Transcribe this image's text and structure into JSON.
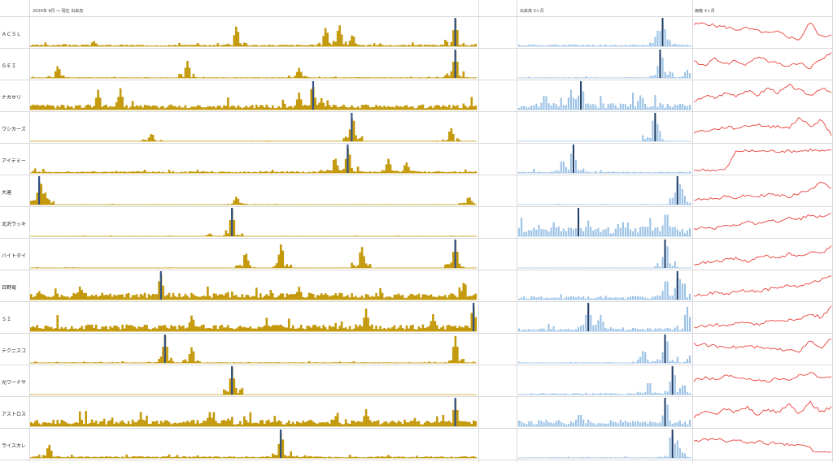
{
  "header": {
    "period_label": "2024年 9月 〜 現在 出来高",
    "volume_label": "出来高 3ヶ月",
    "price_label": "価格 3ヶ月"
  },
  "colors": {
    "volume_long": "#c49a0c",
    "volume_short": "#9dc3e6",
    "highlight": "#2f4f85",
    "highlight_short": "#1f3d66",
    "price_line": "#e8413c",
    "grid": "#d9d9d9"
  },
  "chart_data": {
    "type": "bar",
    "description_of_panels": [
      "volume since 2024-09 (gold bars)",
      "volume last 3 months (blue bars)",
      "price last 3 months (red line)"
    ],
    "rows": [
      {
        "name": "ＡＣＳＬ",
        "long": {
          "peak": 0.95,
          "spikes": [
            [
              0.14,
              0.2
            ],
            [
              0.46,
              0.75
            ],
            [
              0.66,
              0.7
            ],
            [
              0.69,
              0.8
            ],
            [
              0.72,
              0.45
            ],
            [
              0.95,
              0.95
            ]
          ],
          "base": 0.05
        },
        "short": {
          "peak": 0.9,
          "spikes": [
            [
              0.8,
              0.55
            ],
            [
              0.83,
              0.95
            ],
            [
              0.85,
              0.3
            ]
          ],
          "base": 0.06
        },
        "price": [
          0.8,
          0.85,
          0.75,
          0.7,
          0.6,
          0.65,
          0.55,
          0.45,
          0.5,
          0.3,
          0.2,
          0.9,
          0.3,
          0.4
        ]
      },
      {
        "name": "ＧＥＩ",
        "long": {
          "peak": 0.95,
          "spikes": [
            [
              0.06,
              0.45
            ],
            [
              0.35,
              0.6
            ],
            [
              0.6,
              0.35
            ],
            [
              0.95,
              0.95
            ]
          ],
          "base": 0.02
        },
        "short": {
          "peak": 0.9,
          "spikes": [
            [
              0.82,
              0.95
            ],
            [
              0.97,
              0.3
            ]
          ],
          "base": 0.02
        },
        "price": [
          0.6,
          0.4,
          0.7,
          0.5,
          0.6,
          0.45,
          0.8,
          0.6,
          0.5,
          0.4,
          0.55,
          0.3,
          0.7,
          0.9
        ]
      },
      {
        "name": "ナガホリ",
        "long": {
          "peak": 0.95,
          "spikes": [
            [
              0.15,
              0.7
            ],
            [
              0.2,
              0.75
            ],
            [
              0.6,
              0.6
            ],
            [
              0.63,
              0.95
            ],
            [
              0.65,
              0.4
            ]
          ],
          "base": 0.15
        },
        "short": {
          "peak": 0.95,
          "spikes": [
            [
              0.15,
              0.6
            ],
            [
              0.3,
              0.7
            ],
            [
              0.36,
              0.95
            ],
            [
              0.7,
              0.5
            ]
          ],
          "base": 0.2
        },
        "price": [
          0.2,
          0.5,
          0.4,
          0.6,
          0.5,
          0.7,
          0.5,
          0.8,
          0.6,
          0.9,
          0.7,
          0.5,
          0.8,
          0.6
        ]
      },
      {
        "name": "ワシカーズ",
        "long": {
          "peak": 0.95,
          "spikes": [
            [
              0.27,
              0.3
            ],
            [
              0.72,
              0.95
            ],
            [
              0.94,
              0.5
            ]
          ],
          "base": 0.01
        },
        "short": {
          "peak": 0.9,
          "spikes": [
            [
              0.78,
              0.95
            ],
            [
              0.8,
              0.6
            ]
          ],
          "base": 0.01
        },
        "price": [
          0.3,
          0.35,
          0.4,
          0.5,
          0.45,
          0.55,
          0.6,
          0.5,
          0.55,
          0.45,
          0.9,
          0.5,
          0.8,
          0.2
        ]
      },
      {
        "name": "アイデミー",
        "long": {
          "peak": 0.95,
          "spikes": [
            [
              0.68,
              0.6
            ],
            [
              0.71,
              0.95
            ],
            [
              0.8,
              0.5
            ],
            [
              0.84,
              0.4
            ]
          ],
          "base": 0.05
        },
        "short": {
          "peak": 0.9,
          "spikes": [
            [
              0.25,
              0.5
            ],
            [
              0.31,
              0.95
            ]
          ],
          "base": 0.05
        },
        "price": [
          0.05,
          0.05,
          0.05,
          0.05,
          0.8,
          0.8,
          0.8,
          0.8,
          0.8,
          0.8,
          0.8,
          0.85,
          0.8,
          0.8
        ]
      },
      {
        "name": "大運",
        "long": {
          "peak": 0.95,
          "spikes": [
            [
              0.02,
              0.95
            ],
            [
              0.03,
              0.5
            ],
            [
              0.46,
              0.3
            ],
            [
              0.98,
              0.3
            ]
          ],
          "base": 0.01
        },
        "short": {
          "peak": 0.95,
          "spikes": [
            [
              0.92,
              0.95
            ],
            [
              0.94,
              0.6
            ]
          ],
          "base": 0.01
        },
        "price": [
          0.1,
          0.2,
          0.15,
          0.25,
          0.2,
          0.3,
          0.25,
          0.35,
          0.3,
          0.25,
          0.4,
          0.5,
          0.9,
          0.6
        ]
      },
      {
        "name": "北沢ラッキ",
        "long": {
          "peak": 0.95,
          "spikes": [
            [
              0.4,
              0.1
            ],
            [
              0.45,
              0.95
            ]
          ],
          "base": 0.01
        },
        "short": {
          "peak": 0.95,
          "spikes": [
            [
              0.2,
              0.5
            ],
            [
              0.4,
              0.55
            ],
            [
              0.6,
              0.5
            ],
            [
              0.85,
              0.95
            ]
          ],
          "base": 0.3
        },
        "price": [
          0.2,
          0.3,
          0.25,
          0.4,
          0.35,
          0.5,
          0.4,
          0.6,
          0.5,
          0.7,
          0.6,
          0.8,
          0.7,
          0.9
        ]
      },
      {
        "name": "バイトダイ",
        "long": {
          "peak": 0.95,
          "spikes": [
            [
              0.48,
              0.6
            ],
            [
              0.56,
              0.9
            ],
            [
              0.74,
              0.8
            ],
            [
              0.95,
              0.95
            ]
          ],
          "base": 0.01
        },
        "short": {
          "peak": 0.95,
          "spikes": [
            [
              0.85,
              0.95
            ]
          ],
          "base": 0.01
        },
        "price": [
          0.1,
          0.15,
          0.2,
          0.25,
          0.3,
          0.2,
          0.35,
          0.4,
          0.3,
          0.5,
          0.4,
          0.6,
          0.5,
          0.8
        ]
      },
      {
        "name": "日野電",
        "long": {
          "peak": 0.95,
          "spikes": [
            [
              0.11,
              0.5
            ],
            [
              0.29,
              0.95
            ],
            [
              0.6,
              0.45
            ],
            [
              0.97,
              0.7
            ]
          ],
          "base": 0.2
        },
        "short": {
          "peak": 0.95,
          "spikes": [
            [
              0.85,
              0.8
            ],
            [
              0.92,
              0.95
            ],
            [
              0.95,
              0.7
            ]
          ],
          "base": 0.1
        },
        "price": [
          0.1,
          0.15,
          0.2,
          0.15,
          0.25,
          0.3,
          0.25,
          0.35,
          0.4,
          0.5,
          0.45,
          0.6,
          0.7,
          0.9
        ]
      },
      {
        "name": "ＳＩ",
        "long": {
          "peak": 0.95,
          "spikes": [
            [
              0.36,
              0.6
            ],
            [
              0.75,
              0.8
            ],
            [
              0.9,
              0.6
            ],
            [
              0.99,
              0.95
            ]
          ],
          "base": 0.2
        },
        "short": {
          "peak": 0.95,
          "spikes": [
            [
              0.4,
              0.95
            ],
            [
              0.47,
              0.6
            ],
            [
              0.97,
              0.9
            ]
          ],
          "base": 0.1
        },
        "price": [
          0.1,
          0.15,
          0.2,
          0.15,
          0.25,
          0.3,
          0.2,
          0.35,
          0.3,
          0.4,
          0.45,
          0.6,
          0.5,
          0.9
        ]
      },
      {
        "name": "テクニスコ",
        "long": {
          "peak": 0.95,
          "spikes": [
            [
              0.3,
              0.95
            ],
            [
              0.36,
              0.6
            ],
            [
              0.95,
              0.95
            ]
          ],
          "base": 0.02
        },
        "short": {
          "peak": 0.95,
          "spikes": [
            [
              0.72,
              0.5
            ],
            [
              0.85,
              0.95
            ],
            [
              0.99,
              0.3
            ]
          ],
          "base": 0.02
        },
        "price": [
          0.7,
          0.65,
          0.6,
          0.6,
          0.55,
          0.6,
          0.55,
          0.5,
          0.45,
          0.5,
          0.4,
          0.8,
          0.5,
          0.9
        ]
      },
      {
        "name": "光ワードサ",
        "long": {
          "peak": 0.95,
          "spikes": [
            [
              0.45,
              0.95
            ]
          ],
          "base": 0.0
        },
        "short": {
          "peak": 0.95,
          "spikes": [
            [
              0.75,
              0.5
            ],
            [
              0.89,
              0.95
            ],
            [
              0.95,
              0.4
            ]
          ],
          "base": 0.05
        },
        "price": [
          0.5,
          0.6,
          0.55,
          0.7,
          0.6,
          0.5,
          0.55,
          0.45,
          0.6,
          0.5,
          0.7,
          0.8,
          0.6,
          0.7
        ]
      },
      {
        "name": "アストロス",
        "long": {
          "peak": 0.95,
          "spikes": [
            [
              0.4,
              0.5
            ],
            [
              0.75,
              0.6
            ],
            [
              0.95,
              0.95
            ]
          ],
          "base": 0.2
        },
        "short": {
          "peak": 0.95,
          "spikes": [
            [
              0.35,
              0.5
            ],
            [
              0.85,
              0.95
            ]
          ],
          "base": 0.2
        },
        "price": [
          0.3,
          0.5,
          0.4,
          0.6,
          0.5,
          0.7,
          0.4,
          0.6,
          0.5,
          0.8,
          0.4,
          0.9,
          0.5,
          0.7
        ]
      },
      {
        "name": "ライスカレ",
        "long": {
          "peak": 0.95,
          "spikes": [
            [
              0.04,
              0.5
            ],
            [
              0.56,
              0.95
            ]
          ],
          "base": 0.05
        },
        "short": {
          "peak": 0.95,
          "spikes": [
            [
              0.88,
              0.95
            ],
            [
              0.91,
              0.7
            ]
          ],
          "base": 0.02
        },
        "price": [
          0.6,
          0.65,
          0.7,
          0.6,
          0.65,
          0.55,
          0.6,
          0.5,
          0.55,
          0.45,
          0.5,
          0.3,
          0.1,
          0.2
        ]
      }
    ]
  }
}
